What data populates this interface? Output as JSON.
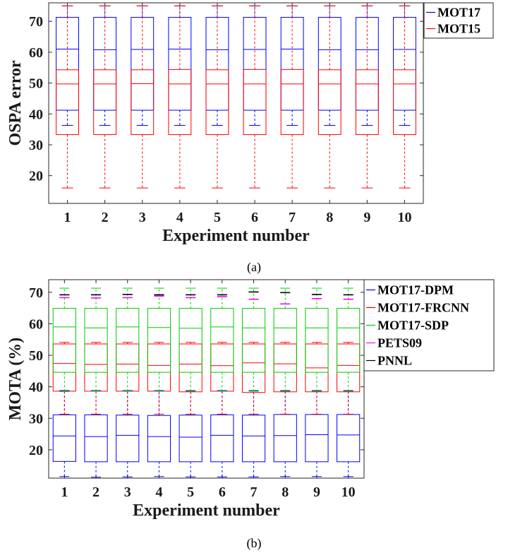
{
  "chart_data": [
    {
      "type": "box",
      "caption": "(a)",
      "xlabel": "Experiment number",
      "ylabel": "OSPA error",
      "categories": [
        "1",
        "2",
        "3",
        "4",
        "5",
        "6",
        "7",
        "8",
        "9",
        "10"
      ],
      "xlim": [
        0.5,
        10.5
      ],
      "ylim": [
        11,
        76
      ],
      "yticks": [
        20,
        30,
        40,
        50,
        60,
        70
      ],
      "grid": false,
      "legend_position": "outside-top-right",
      "series": [
        {
          "name": "MOT17",
          "color": "#0000ff",
          "whisker_low": [
            36.3,
            36.3,
            36.3,
            36.3,
            36.3,
            36.3,
            36.3,
            36.3,
            36.3,
            36.3
          ],
          "q1": [
            41.2,
            41.2,
            41.2,
            41.2,
            41.2,
            41.2,
            41.2,
            41.2,
            41.2,
            41.2
          ],
          "median": [
            61.0,
            60.8,
            60.9,
            61.0,
            60.8,
            60.9,
            61.0,
            60.8,
            60.8,
            60.9
          ],
          "q3": [
            71.3,
            71.3,
            71.3,
            71.3,
            71.3,
            71.3,
            71.3,
            71.3,
            71.3,
            71.3
          ],
          "whisker_high": [
            75.0,
            75.0,
            75.0,
            75.0,
            75.0,
            75.0,
            75.0,
            75.0,
            75.0,
            75.0
          ]
        },
        {
          "name": "MOT15",
          "color": "#ff0000",
          "whisker_low": [
            16.0,
            16.0,
            16.0,
            16.0,
            16.0,
            16.0,
            16.0,
            16.0,
            16.0,
            16.0
          ],
          "q1": [
            33.3,
            33.3,
            33.3,
            33.3,
            33.3,
            33.3,
            33.3,
            33.3,
            33.3,
            33.3
          ],
          "median": [
            49.7,
            49.7,
            49.8,
            49.7,
            49.7,
            49.7,
            49.7,
            49.7,
            49.7,
            49.7
          ],
          "q3": [
            54.3,
            54.3,
            54.3,
            54.4,
            54.3,
            54.4,
            54.4,
            54.3,
            54.3,
            54.3
          ],
          "whisker_high": [
            75.0,
            75.0,
            75.0,
            75.0,
            75.0,
            75.0,
            75.0,
            75.0,
            75.0,
            75.0
          ]
        }
      ]
    },
    {
      "type": "box",
      "caption": "(b)",
      "xlabel": "Experiment number",
      "ylabel": "MOTA (%)",
      "categories": [
        "1",
        "2",
        "3",
        "4",
        "5",
        "6",
        "7",
        "8",
        "9",
        "10"
      ],
      "xlim": [
        0.5,
        10.5
      ],
      "ylim": [
        11,
        74
      ],
      "yticks": [
        20,
        30,
        40,
        50,
        60,
        70
      ],
      "grid": false,
      "legend_position": "outside-top-right",
      "series": [
        {
          "name": "MOT17-DPM",
          "color": "#0000ff",
          "whisker_low": [
            11.5,
            11.3,
            11.4,
            11.5,
            11.4,
            11.4,
            11.4,
            11.5,
            11.5,
            11.5
          ],
          "q1": [
            16.3,
            16.2,
            16.2,
            16.2,
            16.2,
            16.2,
            16.2,
            16.2,
            16.2,
            16.2
          ],
          "median": [
            24.4,
            24.2,
            24.6,
            24.2,
            24.0,
            24.6,
            24.4,
            24.5,
            24.8,
            24.7
          ],
          "q3": [
            31.1,
            31.1,
            31.0,
            30.9,
            31.0,
            31.1,
            31.0,
            31.2,
            31.2,
            31.2
          ],
          "whisker_high": [
            38.8,
            38.8,
            38.8,
            38.8,
            38.8,
            38.8,
            38.8,
            38.8,
            38.8,
            38.8
          ]
        },
        {
          "name": "MOT17-FRCNN",
          "color": "#ff0000",
          "whisker_low": [
            31.3,
            31.3,
            31.3,
            31.3,
            31.3,
            31.3,
            31.3,
            31.3,
            31.3,
            31.3
          ],
          "q1": [
            38.6,
            38.6,
            38.6,
            38.6,
            38.4,
            38.6,
            38.2,
            38.4,
            38.4,
            38.4
          ],
          "median": [
            47.4,
            47.1,
            47.2,
            46.8,
            47.2,
            46.7,
            47.6,
            47.3,
            46.0,
            46.8
          ],
          "q3": [
            53.6,
            53.6,
            53.6,
            53.6,
            53.6,
            53.6,
            53.6,
            53.6,
            53.6,
            53.6
          ],
          "whisker_high": [
            54.1,
            54.1,
            54.1,
            54.1,
            54.1,
            54.1,
            54.1,
            54.1,
            54.1,
            54.1
          ]
        },
        {
          "name": "MOT17-SDP",
          "color": "#00cc00",
          "whisker_low": [
            38.5,
            38.6,
            38.6,
            38.6,
            38.6,
            38.6,
            38.6,
            38.6,
            38.6,
            38.6
          ],
          "q1": [
            44.6,
            44.6,
            44.6,
            44.6,
            44.6,
            44.6,
            44.6,
            44.6,
            44.6,
            44.6
          ],
          "median": [
            59.0,
            58.7,
            59.0,
            58.8,
            58.6,
            59.0,
            58.7,
            58.7,
            58.7,
            58.7
          ],
          "q3": [
            64.9,
            64.9,
            64.9,
            64.9,
            64.9,
            64.9,
            64.9,
            64.9,
            64.9,
            64.9
          ],
          "whisker_high": [
            71.3,
            71.3,
            71.3,
            71.3,
            71.3,
            71.3,
            71.3,
            71.3,
            71.3,
            71.3
          ]
        },
        {
          "name": "PETS09",
          "color": "#ff00ff",
          "whisker_low": [
            null,
            null,
            null,
            null,
            null,
            null,
            null,
            null,
            null,
            null
          ],
          "q1": [
            null,
            null,
            null,
            null,
            null,
            null,
            null,
            null,
            null,
            null
          ],
          "median": [
            null,
            null,
            null,
            null,
            null,
            null,
            null,
            null,
            null,
            null
          ],
          "q3": [
            null,
            null,
            null,
            null,
            null,
            null,
            null,
            null,
            null,
            null
          ],
          "whisker_high": [
            68.3,
            68.2,
            68.3,
            68.8,
            68.3,
            68.6,
            67.8,
            66.3,
            68.0,
            67.8
          ]
        },
        {
          "name": "PNNL",
          "color": "#000000",
          "whisker_low": [
            null,
            null,
            null,
            null,
            null,
            null,
            null,
            null,
            null,
            null
          ],
          "q1": [
            null,
            null,
            null,
            null,
            null,
            null,
            null,
            null,
            null,
            null
          ],
          "median": [
            null,
            null,
            null,
            null,
            null,
            null,
            null,
            null,
            null,
            null
          ],
          "q3": [
            null,
            null,
            null,
            null,
            null,
            null,
            null,
            null,
            null,
            null
          ],
          "whisker_high": [
            69.2,
            69.2,
            69.3,
            69.2,
            69.2,
            69.2,
            70.1,
            69.9,
            69.3,
            69.2
          ]
        }
      ]
    }
  ]
}
